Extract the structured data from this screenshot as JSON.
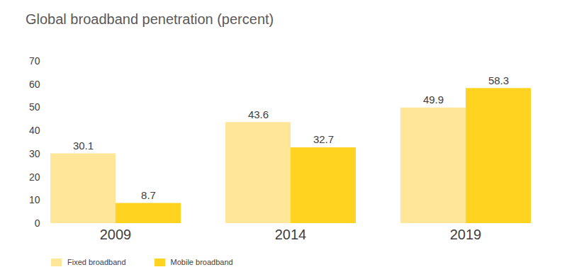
{
  "chart_data": {
    "type": "bar",
    "title": "Global broadband penetration (percent)",
    "categories": [
      "2009",
      "2014",
      "2019"
    ],
    "series": [
      {
        "name": "Fixed broadband",
        "color": "#FFE699",
        "values": [
          30.1,
          43.6,
          49.9
        ]
      },
      {
        "name": "Mobile broadband",
        "color": "#FFD320",
        "values": [
          8.7,
          32.7,
          58.3
        ]
      }
    ],
    "ylim": [
      0,
      70
    ],
    "yticks": [
      0,
      10,
      20,
      30,
      40,
      50,
      60,
      70
    ],
    "grid": false,
    "legend": "bottom-left",
    "data_labels": true
  }
}
